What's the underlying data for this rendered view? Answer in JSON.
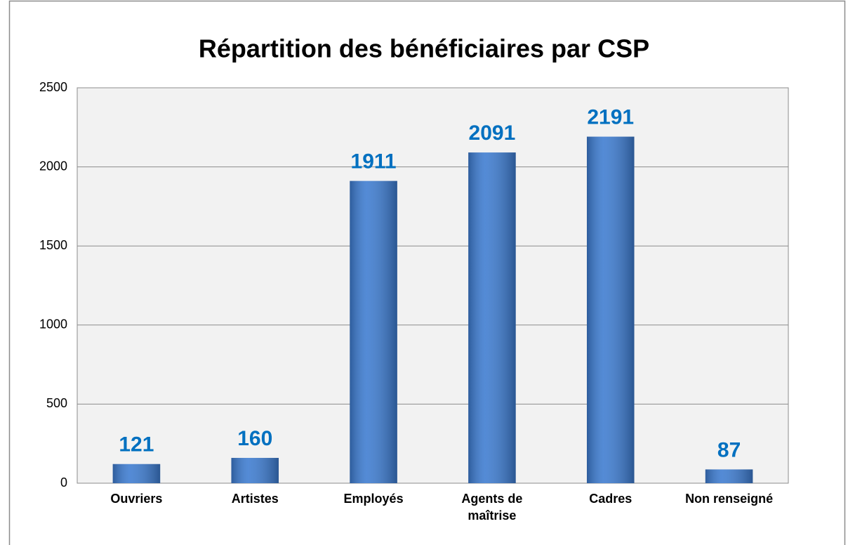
{
  "chart_data": {
    "type": "bar",
    "title": "Répartition des bénéficiaires par CSP",
    "categories": [
      "Ouvriers",
      "Artistes",
      "Employés",
      "Agents de maîtrise",
      "Cadres",
      "Non renseigné"
    ],
    "values": [
      121,
      160,
      1911,
      2091,
      2191,
      87
    ],
    "color": "#3c7bd0",
    "label_color": "#0070c0",
    "ylim": [
      0,
      2500
    ],
    "yticks": [
      0,
      500,
      1000,
      1500,
      2000,
      2500
    ],
    "grid": true
  }
}
